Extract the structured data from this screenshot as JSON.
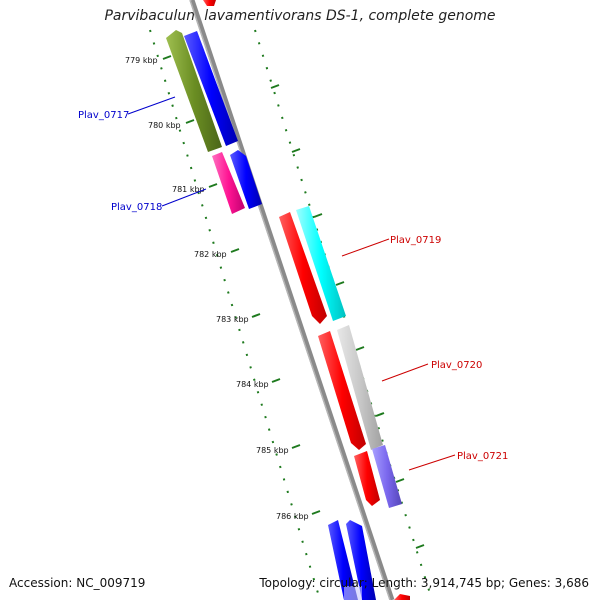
{
  "title": "Parvibaculum lavamentivorans DS-1, complete genome",
  "accession_text": "Accession: NC_009719",
  "summary_text": "Topology: circular; Length: 3,914,745 bp; Genes: 3,686",
  "ruler": {
    "labels": [
      "779 kbp",
      "780 kbp",
      "781 kbp",
      "782 kbp",
      "783 kbp",
      "784 kbp",
      "785 kbp",
      "786 kbp"
    ]
  },
  "genes": [
    {
      "label": "Plav_0717",
      "label_color": "#0000cc"
    },
    {
      "label": "Plav_0718",
      "label_color": "#0000cc"
    },
    {
      "label": "Plav_0719",
      "label_color": "#cc0000"
    },
    {
      "label": "Plav_0720",
      "label_color": "#cc0000"
    },
    {
      "label": "Plav_0721",
      "label_color": "#cc0000"
    }
  ],
  "colors": {
    "backbone": "#8a8a8a",
    "ruler_ticks": "#1e7a1e",
    "forward_cds": "#ff0000",
    "reverse_cds": "#0000ff",
    "olive": "#6b8e23",
    "magenta": "#ff1493",
    "cyan": "#00ffff",
    "gray": "#c8c8c8",
    "violet": "#7b68ee"
  }
}
